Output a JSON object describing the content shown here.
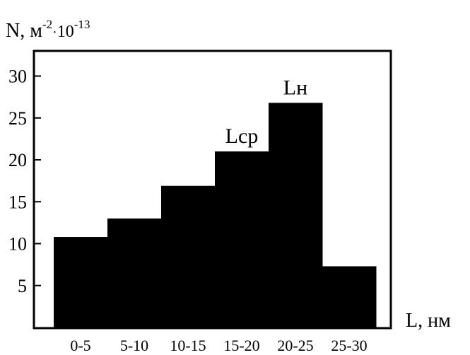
{
  "chart_data": {
    "type": "bar",
    "title": "",
    "ylabel": {
      "base": "N, м",
      "exp1": "-2",
      "dot": "·",
      "base2": "10",
      "exp2": "-13"
    },
    "xlabel": "L, нм",
    "categories": [
      "0-5",
      "5-10",
      "10-15",
      "15-20",
      "20-25",
      "25-30"
    ],
    "values": [
      10.8,
      13.0,
      16.9,
      21.0,
      26.8,
      7.3
    ],
    "ylim": [
      0,
      33
    ],
    "yticks": [
      5,
      10,
      15,
      20,
      25,
      30
    ],
    "grid": false,
    "legend": "none",
    "bar_color": "#000000",
    "annotations": [
      {
        "text": "Lср",
        "category": "15-20"
      },
      {
        "text": "Lн",
        "category": "20-25"
      }
    ]
  }
}
